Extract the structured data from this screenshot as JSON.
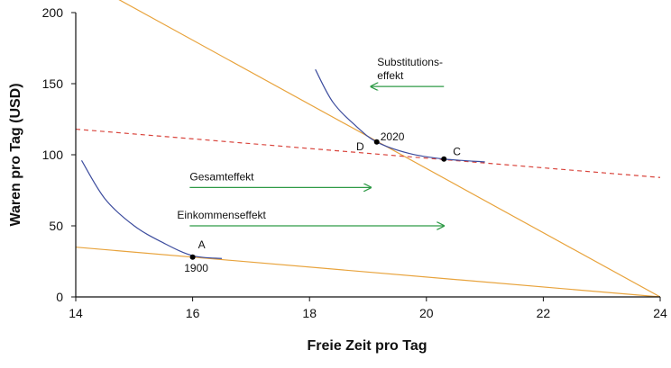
{
  "chart_data": {
    "type": "line",
    "title": "",
    "xlabel": "Freie Zeit pro Tag",
    "ylabel": "Waren pro Tag (USD)",
    "xlim": [
      14,
      24
    ],
    "ylim": [
      0,
      200
    ],
    "x_ticks": [
      14,
      16,
      18,
      20,
      22,
      24
    ],
    "y_ticks": [
      0,
      50,
      100,
      150,
      200
    ],
    "grid": false,
    "legend": "none",
    "colors": {
      "budget_line": "#E8A33C",
      "compensated_line": "#D9453D",
      "indifference_curve": "#3D4D9E",
      "effect_arrow": "#2E9A46",
      "point": "#000000"
    },
    "series": [
      {
        "style": "solid",
        "color": "#E8A33C",
        "points": [
          [
            24,
            0
          ],
          [
            14,
            35
          ]
        ]
      },
      {
        "style": "solid",
        "color": "#E8A33C",
        "points": [
          [
            24,
            0
          ],
          [
            14.7,
            210
          ]
        ]
      },
      {
        "style": "dashed",
        "color": "#D9453D",
        "points": [
          [
            14,
            118
          ],
          [
            24,
            84
          ]
        ]
      },
      {
        "style": "curve",
        "color": "#3D4D9E",
        "points": [
          [
            14.1,
            96
          ],
          [
            14.5,
            69
          ],
          [
            15,
            50
          ],
          [
            15.5,
            38
          ],
          [
            16,
            29
          ],
          [
            16.5,
            27
          ]
        ]
      },
      {
        "style": "curve",
        "color": "#3D4D9E",
        "points": [
          [
            18.1,
            160
          ],
          [
            18.4,
            137
          ],
          [
            18.8,
            120
          ],
          [
            19.15,
            109
          ],
          [
            19.7,
            101
          ],
          [
            20.3,
            97
          ],
          [
            21,
            95
          ]
        ]
      }
    ],
    "points": [
      {
        "x": 16,
        "y": 28,
        "label": "A",
        "sublabel": "1900"
      },
      {
        "x": 19.15,
        "y": 109,
        "label": "D",
        "sublabel": "2020"
      },
      {
        "x": 20.3,
        "y": 97,
        "label": "C",
        "sublabel": ""
      }
    ],
    "arrows": [
      {
        "label": "Substitutions-",
        "label2": "effekt",
        "x_from": 20.3,
        "x_to": 19.05,
        "y": 148
      },
      {
        "label": "Gesamteffekt",
        "label2": "",
        "x_from": 15.95,
        "x_to": 19.05,
        "y": 77
      },
      {
        "label": "Einkommenseffekt",
        "label2": "",
        "x_from": 15.95,
        "x_to": 20.3,
        "y": 50
      }
    ]
  }
}
